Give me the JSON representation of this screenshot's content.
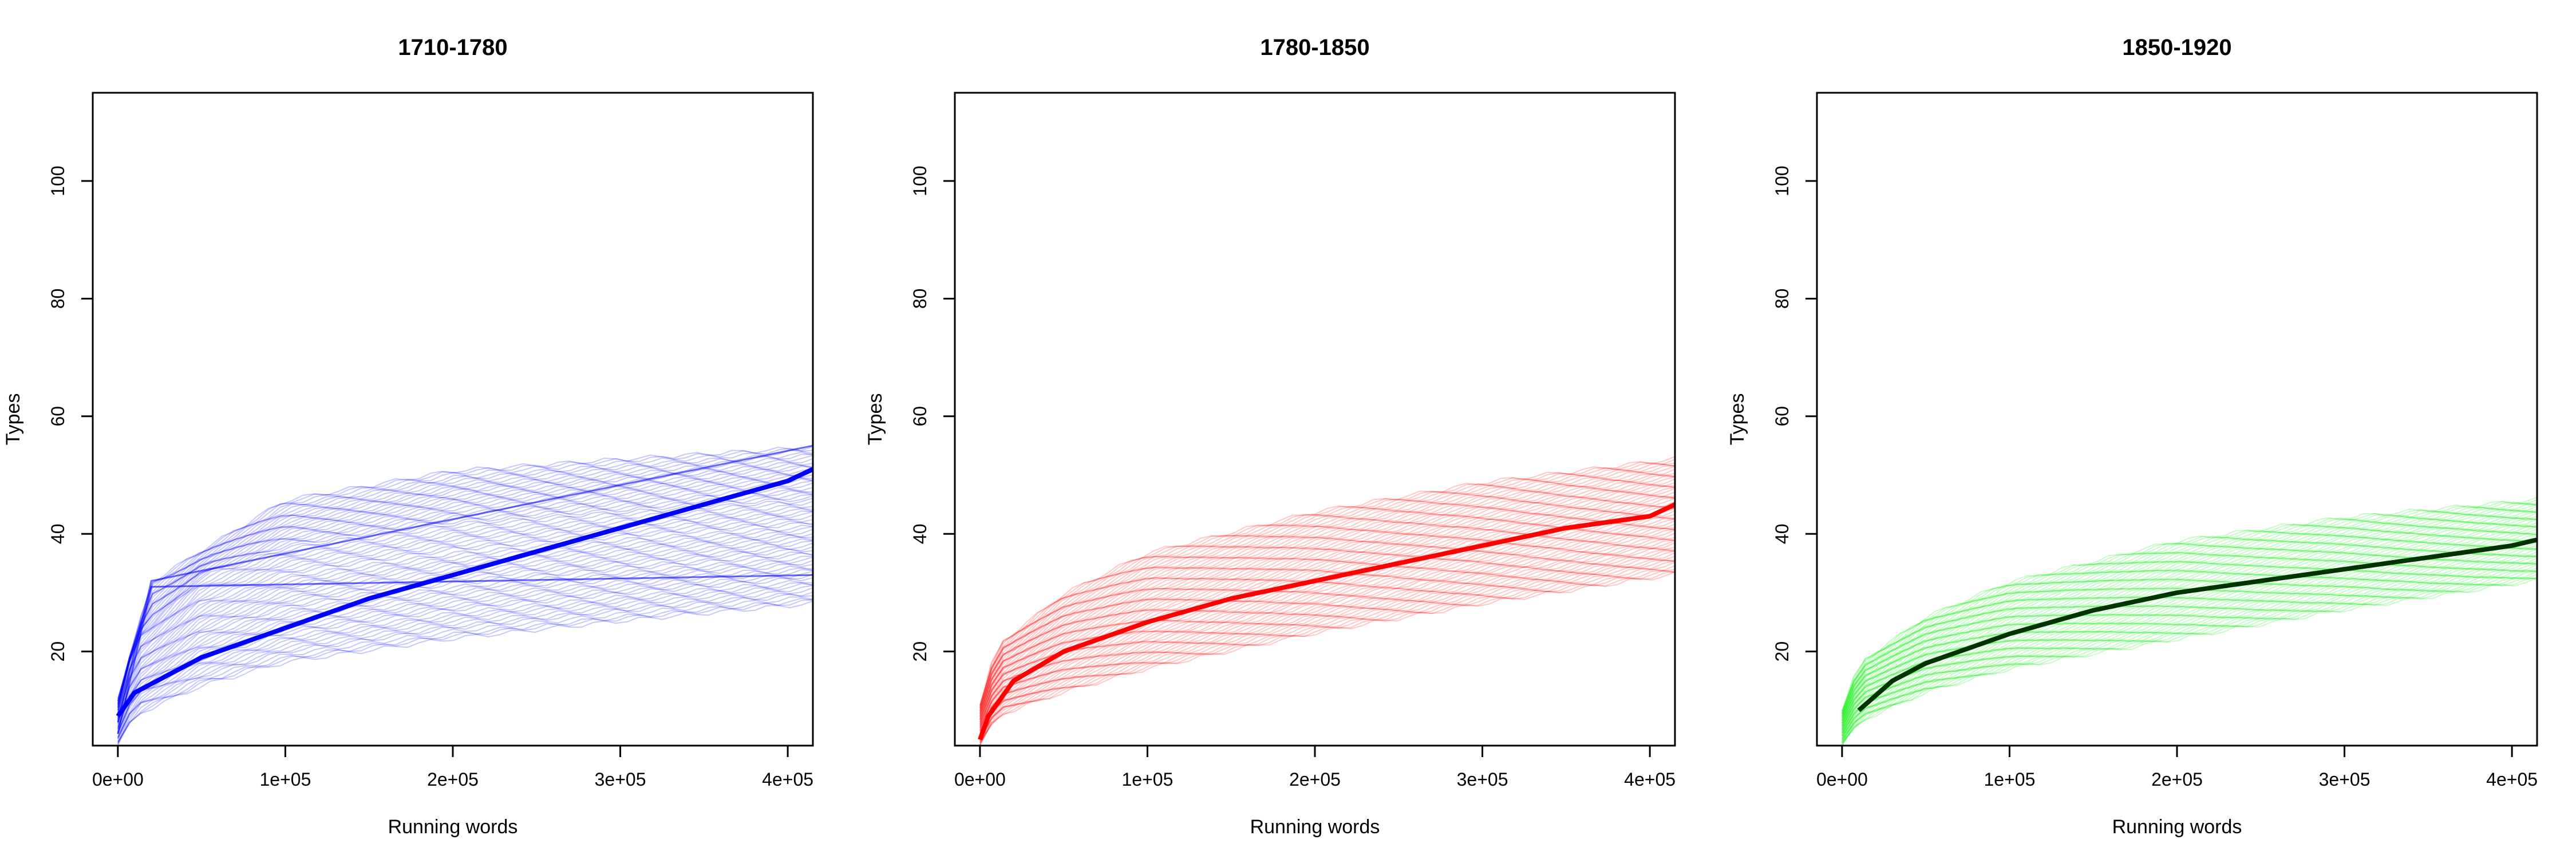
{
  "chart_data": [
    {
      "type": "line",
      "title": "1710-1780",
      "xlabel": "Running words",
      "ylabel": "Types",
      "xlim": [
        -15000,
        415000
      ],
      "ylim": [
        4,
        115
      ],
      "x_ticks": [
        0,
        100000,
        200000,
        300000,
        400000
      ],
      "x_tick_labels": [
        "0e+00",
        "1e+05",
        "2e+05",
        "3e+05",
        "4e+05"
      ],
      "y_ticks": [
        20,
        40,
        60,
        80,
        100
      ],
      "y_tick_labels": [
        "20",
        "40",
        "60",
        "80",
        "100"
      ],
      "grid": false,
      "series_color": "#0000ff",
      "mean_color": "#0000ff",
      "mean_curve": {
        "x": [
          0,
          10000,
          50000,
          100000,
          150000,
          200000,
          250000,
          300000,
          350000,
          400000,
          415000
        ],
        "y": [
          9,
          13,
          19,
          24,
          29,
          33,
          37,
          41,
          45,
          49,
          51
        ]
      },
      "bundle": {
        "lower_band": {
          "x": [
            0,
            10000,
            50000,
            100000,
            200000,
            300000,
            415000
          ],
          "y": [
            4,
            9,
            14,
            18,
            22,
            25,
            28
          ]
        },
        "upper_band": {
          "x": [
            0,
            10000,
            50000,
            100000,
            200000,
            300000,
            415000
          ],
          "y": [
            10,
            22,
            33,
            38,
            42,
            44,
            46
          ]
        },
        "top_band": {
          "x": [
            0,
            20000,
            100000,
            200000,
            300000,
            415000
          ],
          "y": [
            12,
            32,
            46,
            51,
            53,
            55
          ]
        }
      }
    },
    {
      "type": "line",
      "title": "1780-1850",
      "xlabel": "Running words",
      "ylabel": "Types",
      "xlim": [
        -15000,
        415000
      ],
      "ylim": [
        4,
        115
      ],
      "x_ticks": [
        0,
        100000,
        200000,
        300000,
        400000
      ],
      "x_tick_labels": [
        "0e+00",
        "1e+05",
        "2e+05",
        "3e+05",
        "4e+05"
      ],
      "y_ticks": [
        20,
        40,
        60,
        80,
        100
      ],
      "y_tick_labels": [
        "20",
        "40",
        "60",
        "80",
        "100"
      ],
      "grid": false,
      "series_color": "#ff0000",
      "mean_color": "#ff0000",
      "mean_curve": {
        "x": [
          0,
          5000,
          20000,
          50000,
          100000,
          150000,
          200000,
          250000,
          300000,
          350000,
          400000,
          415000
        ],
        "y": [
          5,
          9,
          15,
          20,
          25,
          29,
          32,
          35,
          38,
          41,
          43,
          45
        ]
      },
      "bundle": {
        "lower": {
          "x": [
            0,
            10000,
            50000,
            100000,
            200000,
            300000,
            415000
          ],
          "y": [
            4,
            9,
            13,
            17,
            23,
            28,
            33
          ]
        },
        "upper": {
          "x": [
            0,
            10000,
            50000,
            100000,
            200000,
            300000,
            415000
          ],
          "y": [
            11,
            21,
            30,
            37,
            44,
            49,
            53
          ]
        }
      }
    },
    {
      "type": "line",
      "title": "1850-1920",
      "xlabel": "Running words",
      "ylabel": "Types",
      "xlim": [
        -15000,
        415000
      ],
      "ylim": [
        4,
        115
      ],
      "x_ticks": [
        0,
        100000,
        200000,
        300000,
        400000
      ],
      "x_tick_labels": [
        "0e+00",
        "1e+05",
        "2e+05",
        "3e+05",
        "4e+05"
      ],
      "y_ticks": [
        20,
        40,
        60,
        80,
        100
      ],
      "y_tick_labels": [
        "20",
        "40",
        "60",
        "80",
        "100"
      ],
      "grid": false,
      "series_color": "#00ee00",
      "mean_color": "#003300",
      "mean_curve": {
        "x": [
          10000,
          30000,
          50000,
          100000,
          150000,
          200000,
          250000,
          300000,
          350000,
          400000,
          415000
        ],
        "y": [
          10,
          15,
          18,
          23,
          27,
          30,
          32,
          34,
          36,
          38,
          39
        ]
      },
      "bundle": {
        "lower": {
          "x": [
            0,
            10000,
            50000,
            100000,
            200000,
            300000,
            415000
          ],
          "y": [
            4,
            8,
            13,
            17,
            22,
            27,
            32
          ]
        },
        "upper": {
          "x": [
            0,
            10000,
            50000,
            100000,
            200000,
            300000,
            415000
          ],
          "y": [
            10,
            18,
            26,
            32,
            39,
            43,
            46
          ]
        }
      }
    }
  ]
}
